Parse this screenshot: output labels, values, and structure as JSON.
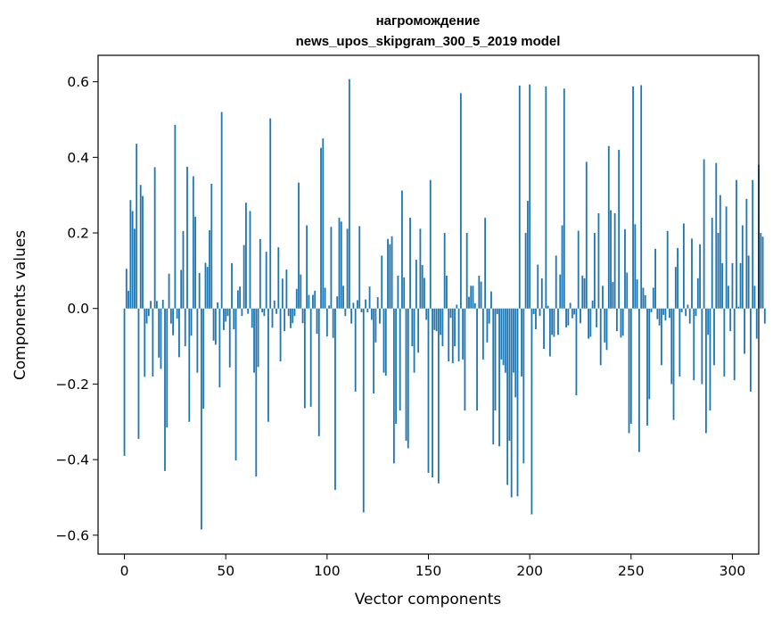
{
  "chart_data": {
    "type": "bar",
    "title": [
      "нагромождение",
      "news_upos_skipgram_300_5_2019 model"
    ],
    "xlabel": "Vector components",
    "ylabel": "Components values",
    "xlim": [
      -13,
      313
    ],
    "ylim": [
      -0.65,
      0.67
    ],
    "xticks": [
      0,
      50,
      100,
      150,
      200,
      250,
      300
    ],
    "xtick_labels": [
      "0",
      "50",
      "100",
      "150",
      "200",
      "250",
      "300"
    ],
    "yticks": [
      -0.6,
      -0.4,
      -0.2,
      0.0,
      0.2,
      0.4,
      0.6
    ],
    "ytick_labels": [
      "−0.6",
      "−0.4",
      "−0.2",
      "0.0",
      "0.2",
      "0.4",
      "0.6"
    ],
    "grid": false,
    "bar_color": "#1f77b4",
    "x_start": 0,
    "values": [
      -0.39,
      0.105,
      0.047,
      0.287,
      0.258,
      0.211,
      0.436,
      -0.345,
      0.327,
      0.298,
      -0.181,
      -0.04,
      -0.02,
      0.02,
      -0.18,
      0.374,
      0.02,
      -0.13,
      -0.16,
      0.023,
      -0.43,
      -0.315,
      0.092,
      -0.04,
      -0.071,
      0.486,
      -0.027,
      -0.129,
      0.102,
      0.205,
      -0.1,
      0.375,
      -0.3,
      -0.072,
      0.35,
      0.243,
      -0.17,
      0.094,
      -0.585,
      -0.265,
      0.121,
      0.11,
      0.207,
      0.33,
      -0.085,
      -0.096,
      0.016,
      -0.209,
      0.52,
      -0.057,
      -0.035,
      -0.02,
      -0.156,
      0.12,
      -0.055,
      -0.402,
      0.048,
      0.058,
      -0.02,
      0.168,
      0.28,
      -0.014,
      0.258,
      -0.051,
      -0.17,
      -0.445,
      -0.155,
      0.184,
      -0.01,
      -0.02,
      0.15,
      -0.3,
      0.503,
      -0.051,
      0.021,
      -0.014,
      0.162,
      -0.14,
      0.079,
      -0.06,
      0.103,
      -0.02,
      -0.052,
      -0.039,
      -0.02,
      0.052,
      0.333,
      0.09,
      -0.039,
      -0.264,
      0.22,
      0.036,
      -0.26,
      0.036,
      0.047,
      -0.067,
      -0.338,
      0.425,
      0.45,
      0.055,
      -0.074,
      0.008,
      0.216,
      -0.078,
      -0.48,
      0.032,
      0.24,
      0.23,
      0.06,
      -0.02,
      0.211,
      0.607,
      -0.04,
      0.015,
      -0.22,
      0.022,
      0.218,
      -0.01,
      -0.54,
      0.024,
      -0.01,
      0.058,
      -0.03,
      -0.225,
      -0.09,
      0.03,
      -0.04,
      0.14,
      -0.17,
      -0.178,
      0.184,
      0.17,
      0.191,
      -0.41,
      -0.305,
      0.087,
      -0.27,
      0.312,
      0.082,
      -0.35,
      -0.37,
      0.24,
      -0.1,
      -0.17,
      0.129,
      -0.117,
      0.211,
      0.115,
      0.081,
      -0.03,
      -0.435,
      0.34,
      -0.447,
      -0.057,
      -0.06,
      -0.463,
      -0.07,
      -0.1,
      0.2,
      0.087,
      -0.14,
      -0.025,
      -0.145,
      -0.1,
      0.01,
      -0.14,
      0.57,
      -0.135,
      -0.27,
      0.2,
      0.031,
      0.06,
      0.06,
      0.014,
      -0.27,
      0.087,
      0.071,
      -0.135,
      0.24,
      -0.09,
      -0.04,
      0.045,
      -0.36,
      -0.27,
      -0.015,
      -0.365,
      -0.135,
      -0.15,
      -0.17,
      -0.467,
      -0.35,
      -0.5,
      -0.17,
      -0.235,
      -0.497,
      0.59,
      -0.18,
      -0.41,
      0.2,
      0.285,
      0.593,
      -0.545,
      -0.015,
      -0.055,
      0.116,
      -0.02,
      0.08,
      -0.107,
      0.588,
      0.007,
      -0.127,
      -0.07,
      -0.075,
      0.14,
      -0.07,
      0.09,
      0.22,
      0.582,
      -0.05,
      -0.045,
      0.015,
      -0.026,
      -0.016,
      -0.23,
      0.206,
      -0.039,
      0.087,
      0.08,
      0.388,
      -0.08,
      -0.075,
      0.021,
      0.2,
      -0.05,
      0.252,
      -0.15,
      0.06,
      -0.09,
      -0.11,
      0.43,
      0.26,
      0.07,
      0.252,
      -0.06,
      0.42,
      -0.077,
      -0.072,
      0.21,
      0.095,
      -0.33,
      -0.305,
      0.588,
      0.223,
      0.077,
      -0.38,
      0.591,
      0.055,
      0.035,
      -0.31,
      -0.24,
      -0.01,
      0.055,
      0.158,
      -0.028,
      -0.045,
      -0.15,
      -0.017,
      -0.032,
      0.205,
      -0.025,
      -0.2,
      -0.295,
      0.11,
      0.16,
      -0.18,
      -0.01,
      0.225,
      -0.02,
      0.01,
      -0.04,
      0.185,
      -0.19,
      -0.02,
      0.08,
      0.17,
      -0.2,
      0.395,
      -0.33,
      -0.07,
      -0.27,
      0.24,
      -0.15,
      0.385,
      0.2,
      0.3,
      0.12,
      -0.18,
      0.27,
      0.06,
      -0.06,
      0.12,
      -0.19,
      0.34,
      0.005,
      0.12,
      0.22,
      -0.12,
      0.29,
      0.14,
      -0.22,
      0.34,
      0.06,
      -0.08,
      0.38,
      0.2,
      0.19,
      -0.04
    ]
  }
}
